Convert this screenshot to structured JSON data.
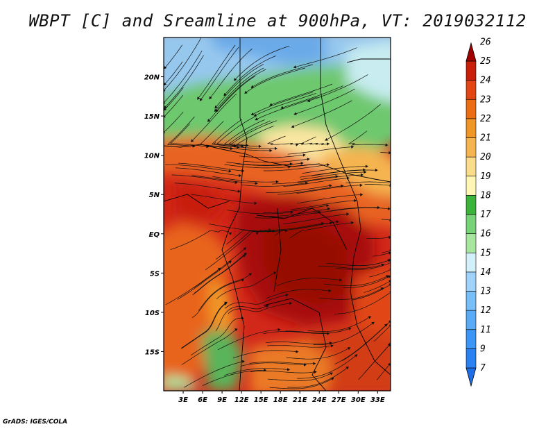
{
  "title": "WBPT [C] and Sreamline at 900hPa, VT: 2019032112",
  "credit": "GrADS: IGES/COLA",
  "map": {
    "lon_range": [
      0,
      35
    ],
    "lat_range": [
      -20,
      25
    ],
    "lat_ticks": [
      {
        "value": 20,
        "label": "20N"
      },
      {
        "value": 15,
        "label": "15N"
      },
      {
        "value": 10,
        "label": "10N"
      },
      {
        "value": 5,
        "label": "5N"
      },
      {
        "value": 0,
        "label": "EQ"
      },
      {
        "value": -5,
        "label": "5S"
      },
      {
        "value": -10,
        "label": "10S"
      },
      {
        "value": -15,
        "label": "15S"
      }
    ],
    "lon_ticks": [
      {
        "value": 3,
        "label": "3E"
      },
      {
        "value": 6,
        "label": "6E"
      },
      {
        "value": 9,
        "label": "9E"
      },
      {
        "value": 12,
        "label": "12E"
      },
      {
        "value": 15,
        "label": "15E"
      },
      {
        "value": 18,
        "label": "18E"
      },
      {
        "value": 21,
        "label": "21E"
      },
      {
        "value": 24,
        "label": "24E"
      },
      {
        "value": 27,
        "label": "27E"
      },
      {
        "value": 30,
        "label": "30E"
      },
      {
        "value": 33,
        "label": "33E"
      }
    ]
  },
  "colorbar": {
    "levels": [
      "7",
      "9",
      "11",
      "12",
      "13",
      "14",
      "15",
      "16",
      "17",
      "18",
      "19",
      "20",
      "21",
      "22",
      "23",
      "24",
      "25",
      "26"
    ],
    "colors": [
      "#1e6ee6",
      "#2a82f0",
      "#3c96f5",
      "#5aaaf5",
      "#78bef7",
      "#a0d2fa",
      "#d2f0fa",
      "#a8e6a0",
      "#78d278",
      "#3cb43c",
      "#fff5b4",
      "#fadc8c",
      "#f5b450",
      "#f09628",
      "#eb6e14",
      "#e14614",
      "#c81e0a",
      "#a00000"
    ]
  }
}
